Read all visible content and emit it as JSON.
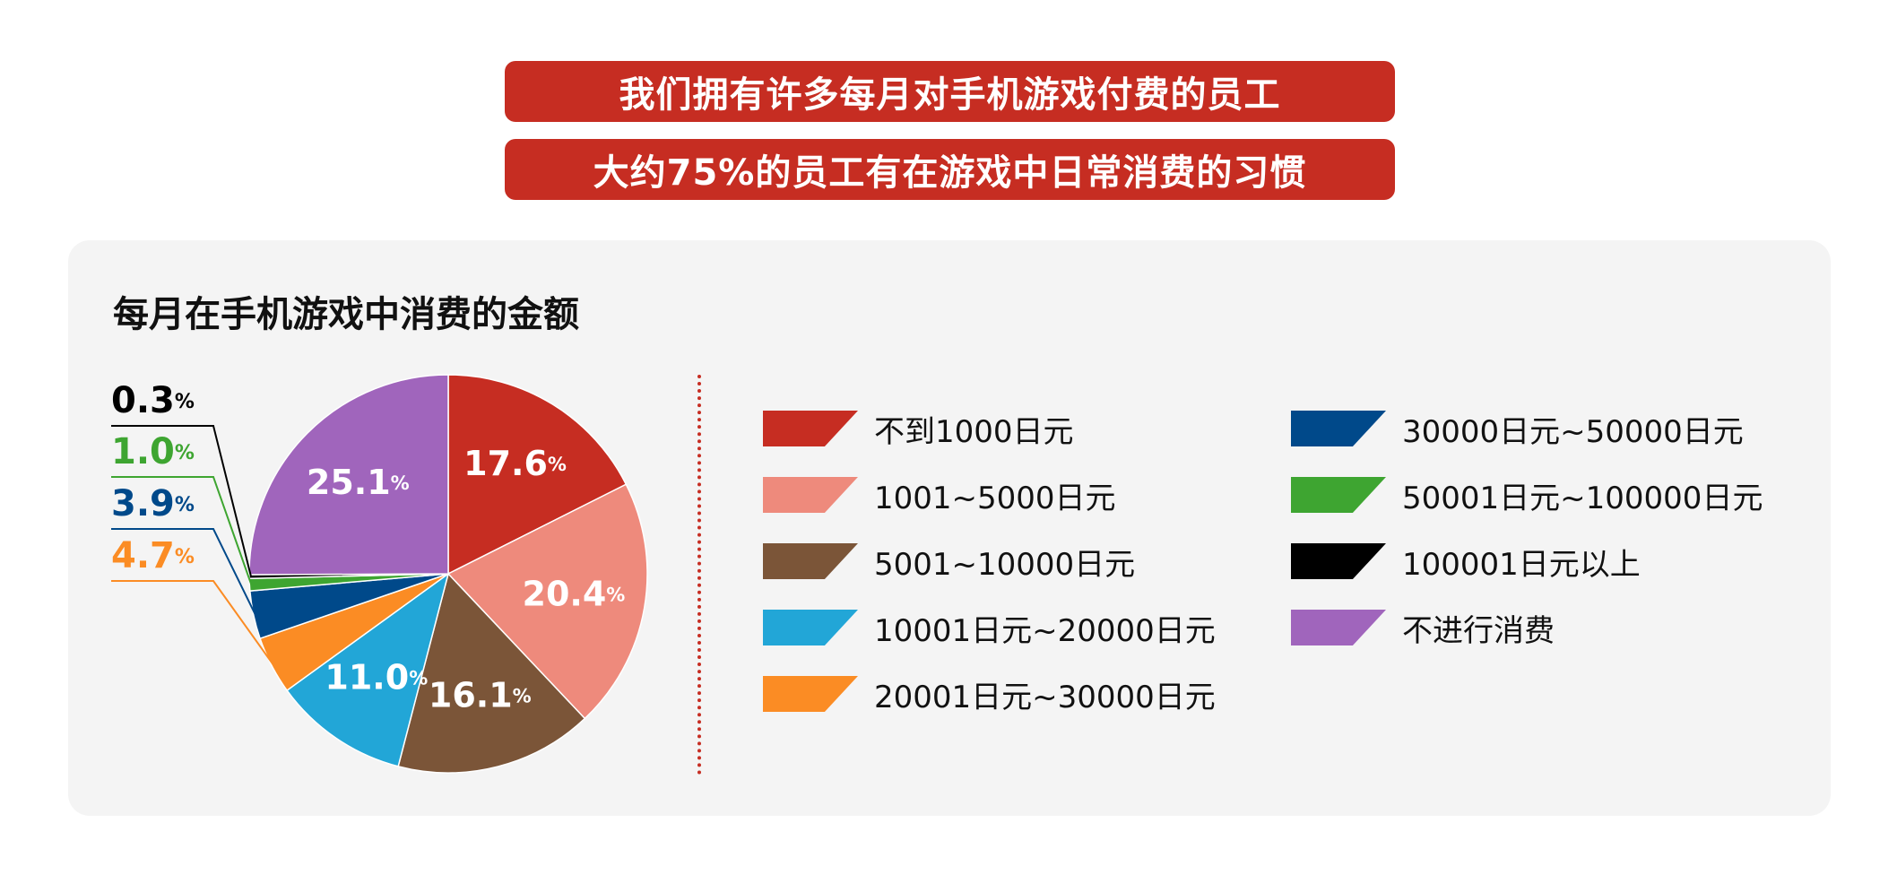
{
  "header": {
    "line1": "我们拥有许多每月对手机游戏付费的员工",
    "line2": "大约75%的员工有在游戏中日常消费的习惯"
  },
  "chart_data": {
    "type": "pie",
    "title": "每月在手机游戏中消费的金额",
    "unit": "%",
    "slices": [
      {
        "label": "不到1000日元",
        "value": 17.6,
        "value_text": "17.6",
        "color": "#c62d22"
      },
      {
        "label": "1001~5000日元",
        "value": 20.4,
        "value_text": "20.4",
        "color": "#ee8a7c"
      },
      {
        "label": "5001~10000日元",
        "value": 16.1,
        "value_text": "16.1",
        "color": "#7b5538"
      },
      {
        "label": "10001日元~20000日元",
        "value": 11.0,
        "value_text": "11.0",
        "color": "#22a6d7"
      },
      {
        "label": "20001日元~30000日元",
        "value": 4.7,
        "value_text": "4.7",
        "color": "#fb8c24"
      },
      {
        "label": "30000日元~50000日元",
        "value": 3.9,
        "value_text": "3.9",
        "color": "#00498a"
      },
      {
        "label": "50001日元~100000日元",
        "value": 1.0,
        "value_text": "1.0",
        "color": "#3ea531"
      },
      {
        "label": "100001日元以上",
        "value": 0.3,
        "value_text": "0.3",
        "color": "#000000"
      },
      {
        "label": "不进行消费",
        "value": 25.1,
        "value_text": "25.1",
        "color": "#a065bc"
      }
    ],
    "legend_position": "right"
  }
}
